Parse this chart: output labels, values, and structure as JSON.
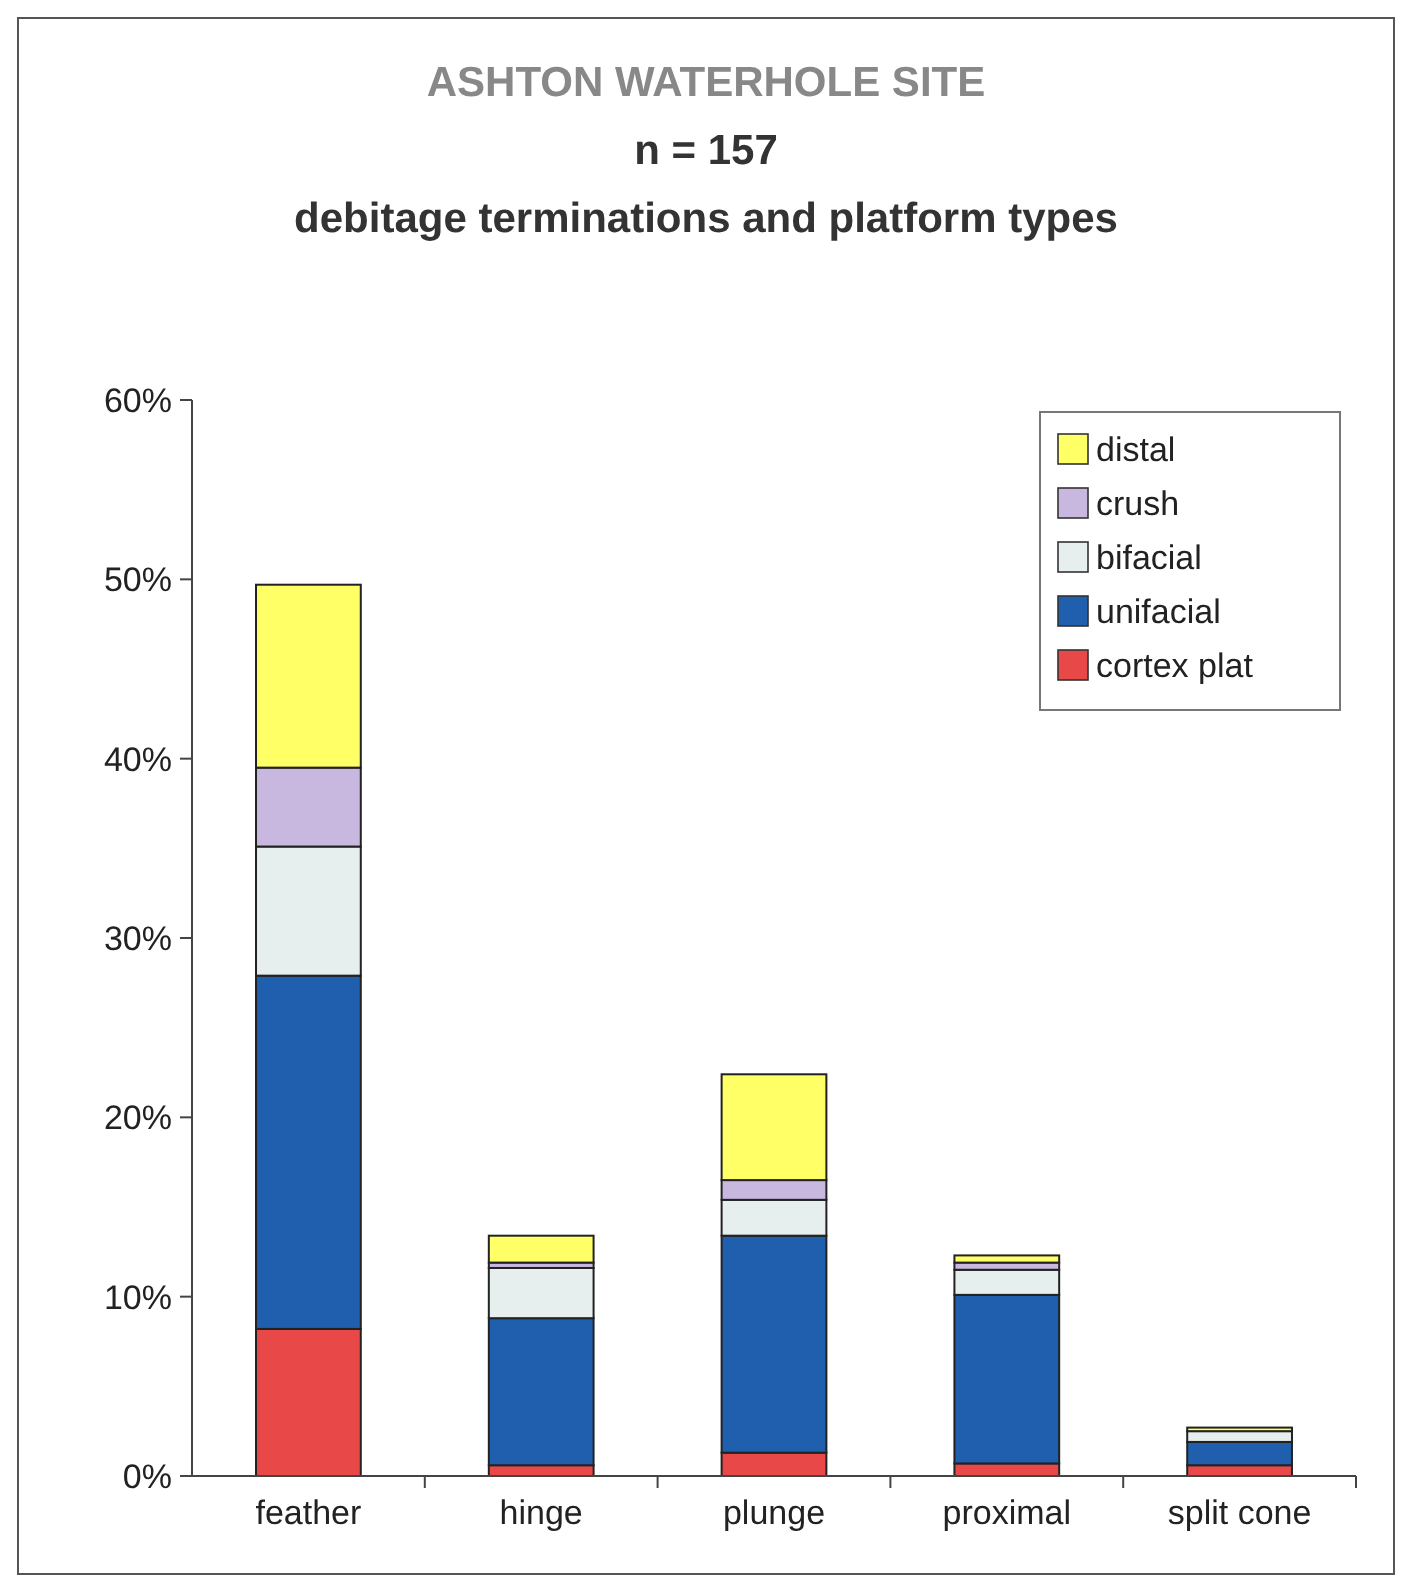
{
  "chart_data": {
    "type": "bar",
    "title": "ASHTON WATERHOLE SITE",
    "subtitle": "n = 157\ndebitage terminations and platform types",
    "categories": [
      "feather",
      "hinge",
      "plunge",
      "proximal",
      "split cone"
    ],
    "stacked": true,
    "legend": "top right",
    "ylim": [
      0,
      60
    ],
    "yticks": [
      {
        "value": 0,
        "label": "0%"
      },
      {
        "value": 10,
        "label": "10%"
      },
      {
        "value": 20,
        "label": "20%"
      },
      {
        "value": 30,
        "label": "30%"
      },
      {
        "value": 40,
        "label": "40%"
      },
      {
        "value": 50,
        "label": "50%"
      },
      {
        "value": 60,
        "label": "60%"
      }
    ],
    "series": [
      {
        "name": "cortex plat",
        "color": "#e84848",
        "values": [
          8.2,
          0.6,
          1.3,
          0.7,
          0.6
        ]
      },
      {
        "name": "unifacial",
        "color": "#1f5fae",
        "values": [
          19.7,
          8.2,
          12.1,
          9.4,
          1.3
        ]
      },
      {
        "name": "bifacial",
        "color": "#e6eeee",
        "values": [
          7.2,
          2.8,
          2.0,
          1.4,
          0.6
        ]
      },
      {
        "name": "crush",
        "color": "#c8b8e0",
        "values": [
          4.4,
          0.3,
          1.1,
          0.4,
          0
        ]
      },
      {
        "name": "distal",
        "color": "#ffff66",
        "values": [
          10.2,
          1.5,
          5.9,
          0.4,
          0.2
        ]
      }
    ]
  }
}
